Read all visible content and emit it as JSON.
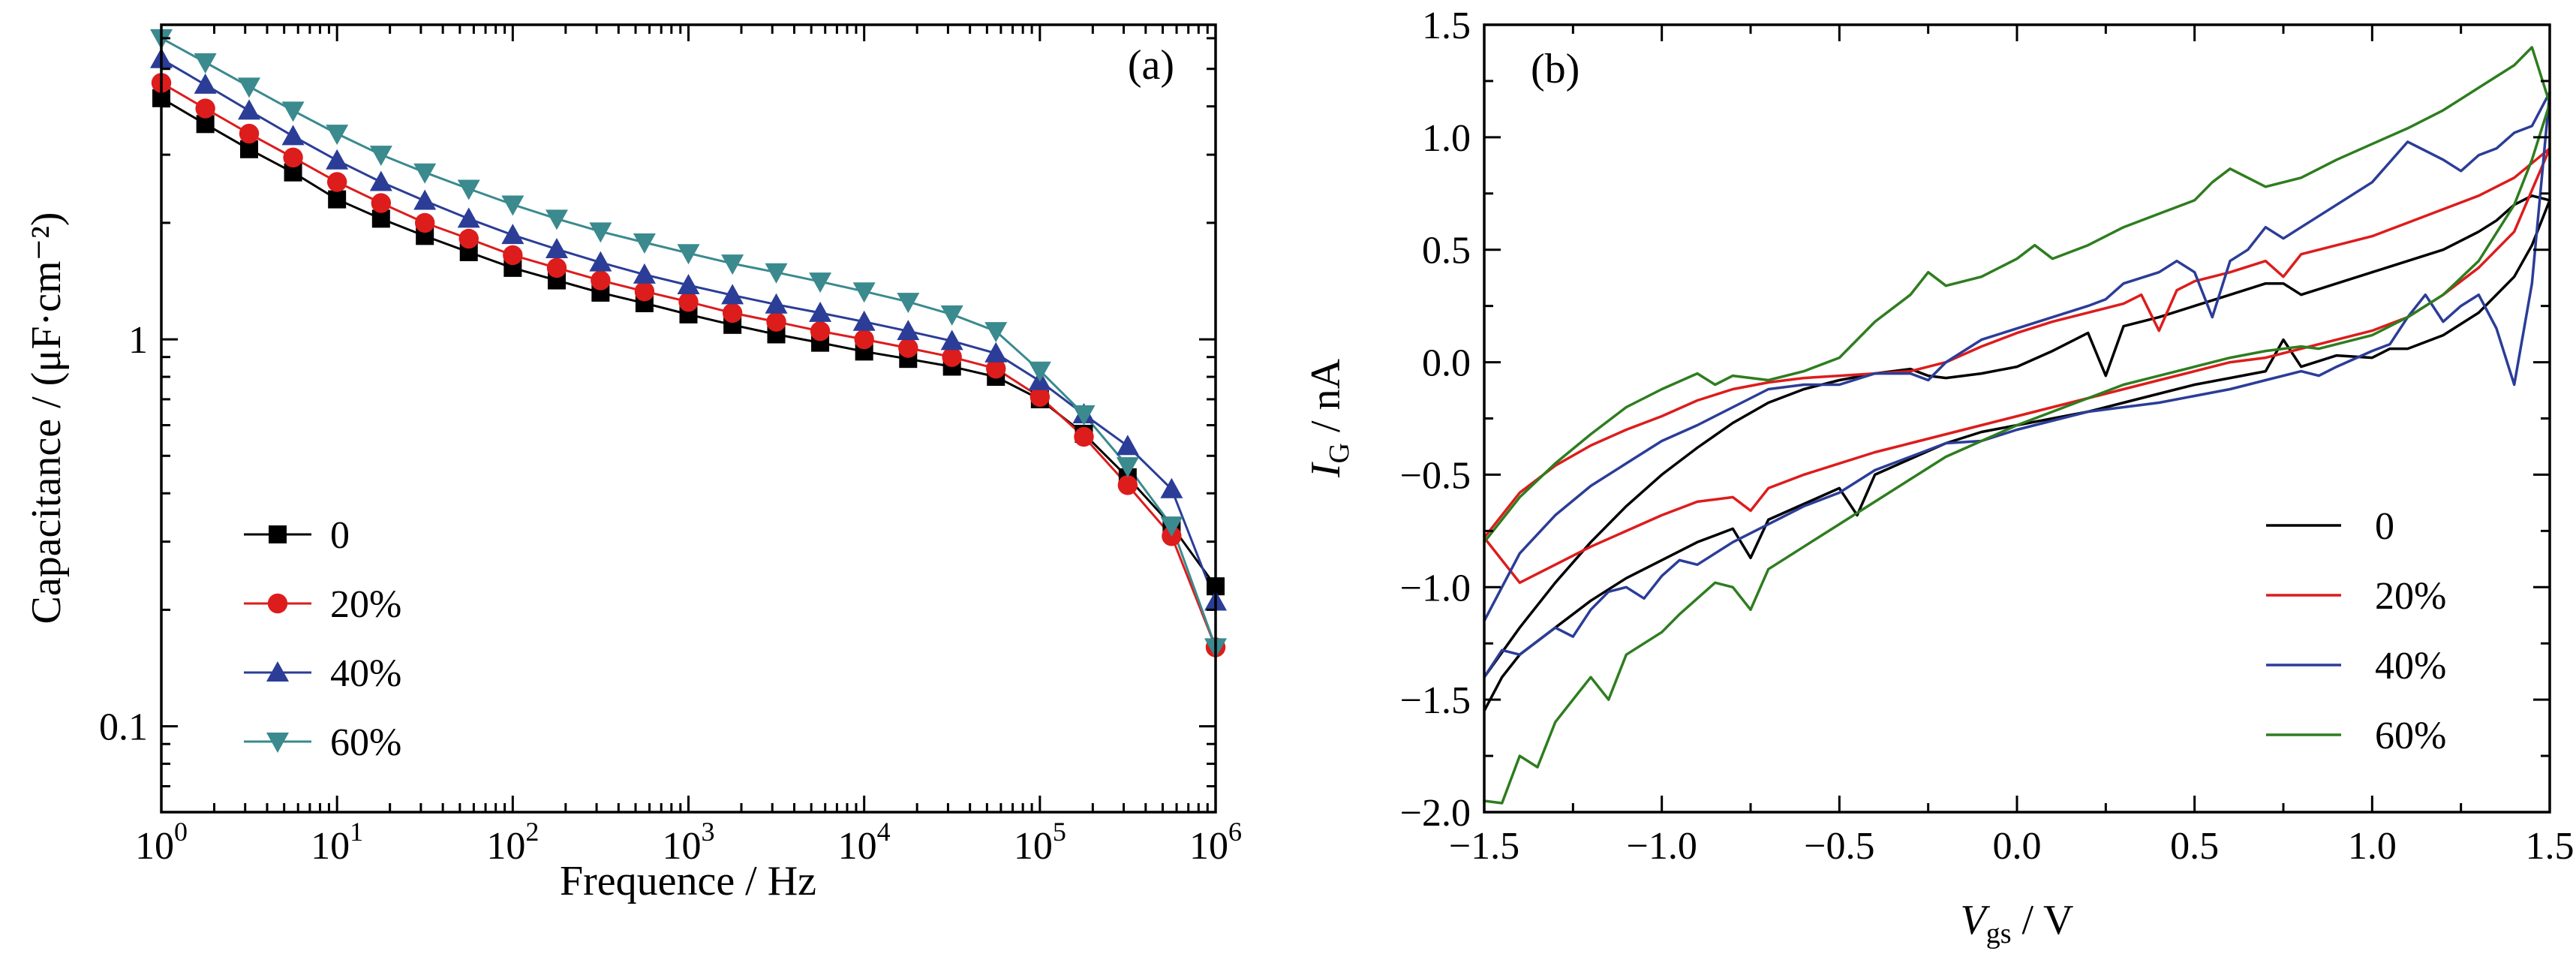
{
  "chart_data": [
    {
      "type": "line",
      "panel_label": "(a)",
      "xlabel": "Frequence / Hz",
      "ylabel": "Capacitance / (μF·cm⁻²)",
      "x_scale": "log",
      "y_scale": "log",
      "xlim": [
        1,
        1000000
      ],
      "ylim": [
        0.06,
        6.5
      ],
      "x_ticks": [
        {
          "value": 1,
          "base": "10",
          "exp": "0"
        },
        {
          "value": 10,
          "base": "10",
          "exp": "1"
        },
        {
          "value": 100,
          "base": "10",
          "exp": "2"
        },
        {
          "value": 1000,
          "base": "10",
          "exp": "3"
        },
        {
          "value": 10000,
          "base": "10",
          "exp": "4"
        },
        {
          "value": 100000,
          "base": "10",
          "exp": "5"
        },
        {
          "value": 1000000,
          "base": "10",
          "exp": "6"
        }
      ],
      "y_ticks": [
        {
          "value": 0.1,
          "label": "0.1"
        },
        {
          "value": 1,
          "label": "1"
        }
      ],
      "legend_position": "lower-left",
      "grid": false,
      "series": [
        {
          "name": "0",
          "color": "#000000",
          "marker": "square",
          "x": [
            1,
            1.78,
            3.16,
            5.62,
            10,
            17.8,
            31.6,
            56.2,
            100,
            178,
            316,
            562,
            1000,
            1780,
            3160,
            5620,
            10000,
            17800,
            31600,
            56200,
            100000,
            178000,
            316000,
            562000,
            1000000
          ],
          "y": [
            4.2,
            3.6,
            3.1,
            2.7,
            2.3,
            2.05,
            1.85,
            1.68,
            1.53,
            1.42,
            1.32,
            1.24,
            1.16,
            1.09,
            1.03,
            0.98,
            0.93,
            0.89,
            0.85,
            0.8,
            0.7,
            0.57,
            0.44,
            0.33,
            0.23
          ]
        },
        {
          "name": "20%",
          "color": "#dd1c1c",
          "marker": "circle",
          "x": [
            1,
            1.78,
            3.16,
            5.62,
            10,
            17.8,
            31.6,
            56.2,
            100,
            178,
            316,
            562,
            1000,
            1780,
            3160,
            5620,
            10000,
            17800,
            31600,
            56200,
            100000,
            178000,
            316000,
            562000,
            1000000
          ],
          "y": [
            4.6,
            3.95,
            3.4,
            2.95,
            2.55,
            2.25,
            2.0,
            1.82,
            1.65,
            1.53,
            1.42,
            1.33,
            1.25,
            1.17,
            1.11,
            1.05,
            1.0,
            0.95,
            0.9,
            0.84,
            0.71,
            0.56,
            0.42,
            0.31,
            0.16
          ]
        },
        {
          "name": "40%",
          "color": "#2b3d97",
          "marker": "triangle-up",
          "x": [
            1,
            1.78,
            3.16,
            5.62,
            10,
            17.8,
            31.6,
            56.2,
            100,
            178,
            316,
            562,
            1000,
            1780,
            3160,
            5620,
            10000,
            17800,
            31600,
            56200,
            100000,
            178000,
            316000,
            562000,
            1000000
          ],
          "y": [
            5.3,
            4.55,
            3.9,
            3.35,
            2.9,
            2.55,
            2.28,
            2.05,
            1.86,
            1.71,
            1.58,
            1.47,
            1.38,
            1.3,
            1.23,
            1.17,
            1.11,
            1.05,
            0.99,
            0.92,
            0.78,
            0.64,
            0.53,
            0.41,
            0.21
          ]
        },
        {
          "name": "60%",
          "color": "#3a8a8e",
          "marker": "triangle-down",
          "x": [
            1,
            1.78,
            3.16,
            5.62,
            10,
            17.8,
            31.6,
            56.2,
            100,
            178,
            316,
            562,
            1000,
            1780,
            3160,
            5620,
            10000,
            17800,
            31600,
            56200,
            100000,
            178000,
            316000,
            562000,
            1000000
          ],
          "y": [
            6.0,
            5.2,
            4.5,
            3.9,
            3.4,
            3.0,
            2.7,
            2.45,
            2.23,
            2.05,
            1.9,
            1.78,
            1.67,
            1.57,
            1.49,
            1.41,
            1.33,
            1.25,
            1.16,
            1.05,
            0.83,
            0.64,
            0.47,
            0.33,
            0.16
          ]
        }
      ]
    },
    {
      "type": "line",
      "panel_label": "(b)",
      "xlabel_main": "V",
      "xlabel_sub": "gs",
      "xlabel_unit": " / V",
      "ylabel_main": "I",
      "ylabel_sub": "G",
      "ylabel_unit": " / nA",
      "xlim": [
        -1.5,
        1.5
      ],
      "ylim": [
        -2.0,
        1.5
      ],
      "x_ticks": [
        {
          "value": -1.5,
          "label": "−1.5"
        },
        {
          "value": -1.0,
          "label": "−1.0"
        },
        {
          "value": -0.5,
          "label": "−0.5"
        },
        {
          "value": 0.0,
          "label": "0.0"
        },
        {
          "value": 0.5,
          "label": "0.5"
        },
        {
          "value": 1.0,
          "label": "1.0"
        },
        {
          "value": 1.5,
          "label": "1.5"
        }
      ],
      "y_ticks": [
        {
          "value": -2.0,
          "label": "−2.0"
        },
        {
          "value": -1.5,
          "label": "−1.5"
        },
        {
          "value": -1.0,
          "label": "−1.0"
        },
        {
          "value": -0.5,
          "label": "−0.5"
        },
        {
          "value": 0.0,
          "label": "0.0"
        },
        {
          "value": 0.5,
          "label": "0.5"
        },
        {
          "value": 1.0,
          "label": "1.0"
        },
        {
          "value": 1.5,
          "label": "1.5"
        }
      ],
      "legend_position": "lower-right",
      "grid": false,
      "series": [
        {
          "name": "0",
          "color": "#000000",
          "x": [
            -1.5,
            -1.45,
            -1.4,
            -1.3,
            -1.2,
            -1.1,
            -1.0,
            -0.9,
            -0.8,
            -0.75,
            -0.7,
            -0.6,
            -0.5,
            -0.45,
            -0.4,
            -0.3,
            -0.2,
            -0.1,
            0.0,
            0.1,
            0.2,
            0.3,
            0.4,
            0.5,
            0.6,
            0.7,
            0.75,
            0.8,
            0.9,
            1.0,
            1.05,
            1.1,
            1.2,
            1.3,
            1.4,
            1.45,
            1.5,
            1.45,
            1.4,
            1.35,
            1.3,
            1.25,
            1.2,
            1.1,
            1.0,
            0.9,
            0.8,
            0.75,
            0.7,
            0.6,
            0.5,
            0.4,
            0.3,
            0.25,
            0.2,
            0.1,
            0.0,
            -0.1,
            -0.2,
            -0.25,
            -0.3,
            -0.4,
            -0.5,
            -0.6,
            -0.7,
            -0.8,
            -0.9,
            -1.0,
            -1.1,
            -1.2,
            -1.3,
            -1.4,
            -1.5
          ],
          "y": [
            -1.55,
            -1.4,
            -1.3,
            -1.18,
            -1.06,
            -0.96,
            -0.88,
            -0.8,
            -0.74,
            -0.87,
            -0.7,
            -0.63,
            -0.56,
            -0.68,
            -0.5,
            -0.43,
            -0.36,
            -0.31,
            -0.28,
            -0.25,
            -0.22,
            -0.18,
            -0.14,
            -0.1,
            -0.07,
            -0.04,
            0.1,
            -0.02,
            0.03,
            0.02,
            0.06,
            0.06,
            0.12,
            0.22,
            0.38,
            0.52,
            0.72,
            0.74,
            0.7,
            0.63,
            0.58,
            0.54,
            0.5,
            0.45,
            0.4,
            0.35,
            0.3,
            0.35,
            0.35,
            0.3,
            0.25,
            0.2,
            0.16,
            -0.06,
            0.13,
            0.05,
            -0.02,
            -0.05,
            -0.07,
            -0.06,
            -0.03,
            -0.05,
            -0.08,
            -0.12,
            -0.18,
            -0.27,
            -0.38,
            -0.5,
            -0.64,
            -0.8,
            -0.98,
            -1.18,
            -1.4
          ]
        },
        {
          "name": "20%",
          "color": "#dd1c1c",
          "x": [
            -1.5,
            -1.4,
            -1.3,
            -1.2,
            -1.1,
            -1.0,
            -0.9,
            -0.8,
            -0.75,
            -0.7,
            -0.6,
            -0.5,
            -0.4,
            -0.3,
            -0.2,
            -0.1,
            0.0,
            0.1,
            0.2,
            0.3,
            0.4,
            0.5,
            0.6,
            0.7,
            0.8,
            0.9,
            1.0,
            1.1,
            1.2,
            1.3,
            1.4,
            1.5,
            1.4,
            1.3,
            1.2,
            1.1,
            1.0,
            0.9,
            0.8,
            0.75,
            0.7,
            0.6,
            0.5,
            0.45,
            0.4,
            0.35,
            0.3,
            0.2,
            0.1,
            0.0,
            -0.1,
            -0.2,
            -0.3,
            -0.4,
            -0.5,
            -0.6,
            -0.7,
            -0.8,
            -0.9,
            -1.0,
            -1.1,
            -1.2,
            -1.3,
            -1.4,
            -1.5
          ],
          "y": [
            -0.78,
            -0.98,
            -0.9,
            -0.82,
            -0.75,
            -0.68,
            -0.62,
            -0.6,
            -0.66,
            -0.56,
            -0.5,
            -0.45,
            -0.4,
            -0.36,
            -0.32,
            -0.28,
            -0.24,
            -0.2,
            -0.16,
            -0.12,
            -0.08,
            -0.04,
            0.0,
            0.02,
            0.06,
            0.1,
            0.14,
            0.2,
            0.3,
            0.42,
            0.58,
            0.95,
            0.82,
            0.74,
            0.68,
            0.62,
            0.56,
            0.52,
            0.48,
            0.38,
            0.45,
            0.4,
            0.36,
            0.32,
            0.14,
            0.3,
            0.26,
            0.22,
            0.18,
            0.13,
            0.07,
            0.0,
            -0.04,
            -0.05,
            -0.06,
            -0.07,
            -0.09,
            -0.12,
            -0.17,
            -0.24,
            -0.3,
            -0.37,
            -0.46,
            -0.58,
            -0.78
          ]
        },
        {
          "name": "40%",
          "color": "#2b3d97",
          "x": [
            -1.5,
            -1.45,
            -1.4,
            -1.3,
            -1.25,
            -1.2,
            -1.15,
            -1.1,
            -1.05,
            -1.0,
            -0.95,
            -0.9,
            -0.8,
            -0.7,
            -0.6,
            -0.5,
            -0.4,
            -0.3,
            -0.2,
            -0.1,
            0.0,
            0.1,
            0.2,
            0.3,
            0.4,
            0.5,
            0.6,
            0.7,
            0.8,
            0.85,
            0.9,
            1.0,
            1.05,
            1.1,
            1.15,
            1.2,
            1.25,
            1.3,
            1.35,
            1.4,
            1.45,
            1.5,
            1.45,
            1.4,
            1.35,
            1.3,
            1.25,
            1.2,
            1.1,
            1.0,
            0.9,
            0.8,
            0.75,
            0.7,
            0.65,
            0.6,
            0.55,
            0.5,
            0.45,
            0.4,
            0.3,
            0.25,
            0.2,
            0.1,
            0.0,
            -0.1,
            -0.2,
            -0.25,
            -0.3,
            -0.4,
            -0.5,
            -0.6,
            -0.7,
            -0.8,
            -0.9,
            -1.0,
            -1.1,
            -1.2,
            -1.3,
            -1.4,
            -1.5
          ],
          "y": [
            -1.4,
            -1.28,
            -1.3,
            -1.18,
            -1.22,
            -1.1,
            -1.02,
            -1.0,
            -1.05,
            -0.95,
            -0.88,
            -0.9,
            -0.8,
            -0.72,
            -0.64,
            -0.58,
            -0.48,
            -0.42,
            -0.36,
            -0.35,
            -0.3,
            -0.26,
            -0.22,
            -0.2,
            -0.18,
            -0.15,
            -0.12,
            -0.08,
            -0.04,
            -0.06,
            -0.02,
            0.05,
            0.08,
            0.2,
            0.3,
            0.18,
            0.25,
            0.3,
            0.15,
            -0.1,
            0.35,
            1.2,
            1.05,
            1.02,
            0.95,
            0.92,
            0.85,
            0.9,
            0.98,
            0.8,
            0.7,
            0.6,
            0.55,
            0.6,
            0.5,
            0.45,
            0.2,
            0.4,
            0.45,
            0.4,
            0.35,
            0.28,
            0.25,
            0.2,
            0.15,
            0.1,
            0.0,
            -0.08,
            -0.05,
            -0.05,
            -0.1,
            -0.1,
            -0.12,
            -0.2,
            -0.28,
            -0.35,
            -0.45,
            -0.55,
            -0.68,
            -0.85,
            -1.15
          ]
        },
        {
          "name": "60%",
          "color": "#2e7d1f",
          "x": [
            -1.5,
            -1.45,
            -1.4,
            -1.35,
            -1.3,
            -1.25,
            -1.2,
            -1.15,
            -1.1,
            -1.05,
            -1.0,
            -0.95,
            -0.9,
            -0.85,
            -0.8,
            -0.75,
            -0.7,
            -0.6,
            -0.5,
            -0.4,
            -0.3,
            -0.2,
            -0.1,
            0.0,
            0.1,
            0.2,
            0.3,
            0.4,
            0.5,
            0.6,
            0.7,
            0.8,
            0.85,
            0.9,
            1.0,
            1.1,
            1.2,
            1.3,
            1.4,
            1.45,
            1.5,
            1.45,
            1.4,
            1.3,
            1.2,
            1.1,
            1.0,
            0.9,
            0.8,
            0.7,
            0.6,
            0.55,
            0.5,
            0.4,
            0.3,
            0.2,
            0.1,
            0.05,
            0.0,
            -0.1,
            -0.2,
            -0.25,
            -0.3,
            -0.4,
            -0.5,
            -0.6,
            -0.7,
            -0.8,
            -0.85,
            -0.9,
            -1.0,
            -1.1,
            -1.2,
            -1.3,
            -1.4,
            -1.5
          ],
          "y": [
            -1.95,
            -1.96,
            -1.75,
            -1.8,
            -1.6,
            -1.5,
            -1.4,
            -1.5,
            -1.3,
            -1.25,
            -1.2,
            -1.12,
            -1.05,
            -0.98,
            -1.0,
            -1.1,
            -0.92,
            -0.82,
            -0.72,
            -0.62,
            -0.52,
            -0.42,
            -0.35,
            -0.28,
            -0.22,
            -0.16,
            -0.1,
            -0.06,
            -0.02,
            0.02,
            0.05,
            0.07,
            0.06,
            0.08,
            0.12,
            0.2,
            0.3,
            0.45,
            0.7,
            0.9,
            1.15,
            1.4,
            1.32,
            1.22,
            1.12,
            1.04,
            0.97,
            0.9,
            0.82,
            0.78,
            0.86,
            0.8,
            0.72,
            0.66,
            0.6,
            0.52,
            0.46,
            0.52,
            0.46,
            0.38,
            0.34,
            0.4,
            0.3,
            0.18,
            0.02,
            -0.04,
            -0.08,
            -0.06,
            -0.1,
            -0.05,
            -0.12,
            -0.2,
            -0.32,
            -0.45,
            -0.6,
            -0.8
          ]
        }
      ]
    }
  ]
}
